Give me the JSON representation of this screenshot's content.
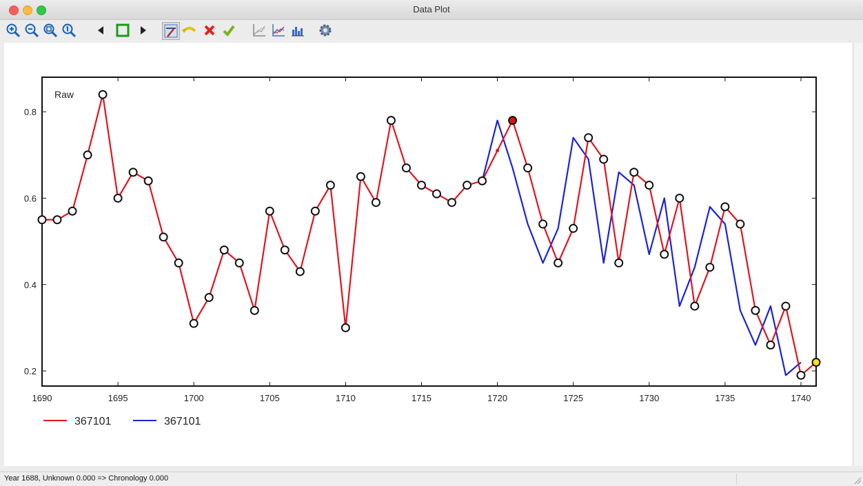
{
  "window": {
    "title": "Data Plot"
  },
  "toolbar": {
    "buttons": [
      {
        "name": "zoom-in-icon"
      },
      {
        "name": "zoom-out-icon"
      },
      {
        "name": "zoom-fit-icon"
      },
      {
        "name": "zoom-reset-icon"
      },
      {
        "name": "previous-icon"
      },
      {
        "name": "select-rectangle-icon"
      },
      {
        "name": "next-icon"
      },
      {
        "name": "edit-series-icon"
      },
      {
        "name": "undo-icon"
      },
      {
        "name": "cancel-icon"
      },
      {
        "name": "apply-icon"
      },
      {
        "name": "line-chart-icon"
      },
      {
        "name": "line-chart-alt-icon"
      },
      {
        "name": "histogram-icon"
      },
      {
        "name": "settings-gear-icon"
      }
    ]
  },
  "colors": {
    "series_red": "#e0141e",
    "series_blue": "#1a22d8",
    "highlight_red": "#dd1111",
    "highlight_yellow": "#f5e21b"
  },
  "chart_data": {
    "type": "line",
    "annotation": "Raw",
    "xlim": [
      1690,
      1741
    ],
    "ylim": [
      0.165,
      0.88
    ],
    "x_ticks": [
      "1690",
      "1695",
      "1700",
      "1705",
      "1710",
      "1715",
      "1720",
      "1725",
      "1730",
      "1735",
      "1740"
    ],
    "y_ticks": [
      "0.2",
      "0.4",
      "0.6",
      "0.8"
    ],
    "legend_position": "bottom-left",
    "series": [
      {
        "name": "367101",
        "color": "red",
        "x": [
          1690,
          1691,
          1692,
          1693,
          1694,
          1695,
          1696,
          1697,
          1698,
          1699,
          1700,
          1701,
          1702,
          1703,
          1704,
          1705,
          1706,
          1707,
          1708,
          1709,
          1710,
          1711,
          1712,
          1713,
          1714,
          1715,
          1716,
          1717,
          1718,
          1719,
          1720,
          1721,
          1722,
          1723,
          1724,
          1725,
          1726,
          1727,
          1728,
          1729,
          1730,
          1731,
          1732,
          1733,
          1734,
          1735,
          1736,
          1737,
          1738,
          1739,
          1740,
          1741
        ],
        "values": [
          0.55,
          0.55,
          0.57,
          0.7,
          0.84,
          0.6,
          0.66,
          0.64,
          0.51,
          0.45,
          0.31,
          0.37,
          0.48,
          0.45,
          0.34,
          0.57,
          0.48,
          0.43,
          0.57,
          0.63,
          0.3,
          0.65,
          0.59,
          0.78,
          0.67,
          0.63,
          0.61,
          0.59,
          0.63,
          0.64,
          0.71,
          0.78,
          0.67,
          0.54,
          0.45,
          0.53,
          0.74,
          0.69,
          0.45,
          0.66,
          0.63,
          0.47,
          0.6,
          0.35,
          0.44,
          0.58,
          0.54,
          0.34,
          0.26,
          0.35,
          0.19,
          0.22
        ]
      },
      {
        "name": "367101",
        "color": "blue",
        "x": [
          1719,
          1720,
          1721,
          1722,
          1723,
          1724,
          1725,
          1726,
          1727,
          1728,
          1729,
          1730,
          1731,
          1732,
          1733,
          1734,
          1735,
          1736,
          1737,
          1738,
          1739,
          1740
        ],
        "values": [
          0.64,
          0.78,
          0.67,
          0.54,
          0.45,
          0.53,
          0.74,
          0.69,
          0.45,
          0.66,
          0.63,
          0.47,
          0.6,
          0.35,
          0.44,
          0.58,
          0.54,
          0.34,
          0.26,
          0.35,
          0.19,
          0.22
        ]
      }
    ],
    "markers": {
      "red_series_open_circle_years": [
        1690,
        1691,
        1692,
        1693,
        1694,
        1695,
        1696,
        1697,
        1698,
        1699,
        1700,
        1701,
        1702,
        1703,
        1704,
        1705,
        1706,
        1707,
        1708,
        1709,
        1710,
        1711,
        1712,
        1713,
        1714,
        1715,
        1716,
        1717,
        1718,
        1719,
        1722,
        1723,
        1724,
        1725,
        1726,
        1727,
        1728,
        1729,
        1730,
        1731,
        1732,
        1733,
        1734,
        1735,
        1736,
        1737,
        1738,
        1739,
        1740
      ],
      "small_dot_year": 1720,
      "highlight_red_year": 1721,
      "highlight_yellow_year": 1741
    }
  },
  "status": {
    "text": "Year 1688, Unknown 0.000 => Chronology 0.000"
  }
}
